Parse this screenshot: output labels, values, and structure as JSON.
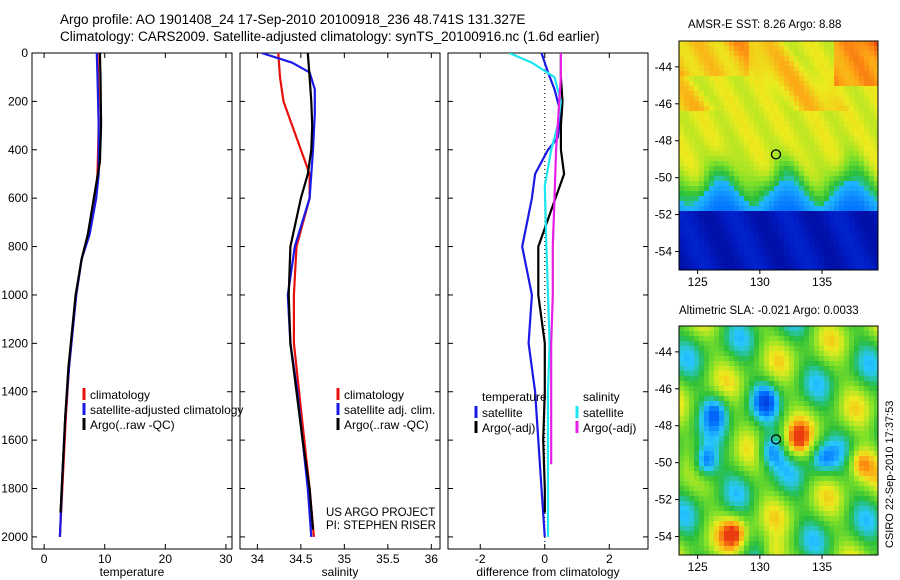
{
  "header": {
    "line1": "Argo profile: AO 1901408_24 17-Sep-2010 20100918_236 48.741S 131.327E",
    "line2": "Climatology: CARS2009. Satellite-adjusted climatology: synTS_20100916.nc (1.6d earlier)"
  },
  "credits": {
    "line1": "US ARGO PROJECT",
    "line2": "PI: STEPHEN RISER",
    "side": "CSIRO 22-Sep-2010 17:37:53"
  },
  "colors": {
    "climatology": "#e8100a",
    "satellite": "#1a1ae6",
    "argo": "#000000",
    "satellite_salinity": "#1ee6f0",
    "argo_adj_salinity": "#e61ee6",
    "text": "#000000"
  },
  "chart_data": [
    {
      "type": "line",
      "orientation": "profile",
      "xlabel": "temperature",
      "ylabel": "",
      "xlim": [
        -2,
        31
      ],
      "ylim": [
        2050,
        0
      ],
      "xticks": [
        0,
        10,
        20,
        30
      ],
      "yticks": [
        0,
        200,
        400,
        600,
        800,
        1000,
        1200,
        1400,
        1600,
        1800,
        2000
      ],
      "legend": {
        "placement": "bottom-right",
        "entries": [
          "climatology",
          "satellite-adjusted climatology",
          "Argo(..raw -QC)"
        ]
      },
      "series": [
        {
          "name": "climatology",
          "color": "#e8100a",
          "x": [
            8.8,
            8.9,
            9.0,
            8.8,
            8.5,
            7.4,
            6.2,
            5.3,
            4.7,
            4.1,
            3.6,
            3.1,
            2.6
          ],
          "y": [
            0,
            100,
            300,
            500,
            600,
            750,
            850,
            1000,
            1150,
            1300,
            1500,
            1750,
            2000
          ]
        },
        {
          "name": "satellite-adjusted climatology",
          "color": "#1a1ae6",
          "x": [
            8.7,
            8.8,
            9.0,
            9.0,
            8.6,
            7.5,
            6.2,
            5.3,
            4.7,
            4.1,
            3.5,
            3.0,
            2.6
          ],
          "y": [
            0,
            100,
            300,
            500,
            600,
            750,
            850,
            1000,
            1150,
            1300,
            1500,
            1750,
            2000
          ]
        },
        {
          "name": "Argo(..raw -QC)",
          "color": "#000000",
          "x": [
            9.2,
            9.3,
            9.4,
            9.2,
            8.2,
            7.2,
            6.2,
            5.2,
            4.6,
            4.0,
            3.5,
            3.0,
            2.7
          ],
          "y": [
            0,
            100,
            300,
            450,
            600,
            750,
            850,
            1000,
            1150,
            1300,
            1500,
            1750,
            1900
          ]
        }
      ]
    },
    {
      "type": "line",
      "orientation": "profile",
      "xlabel": "salinity",
      "ylabel": "",
      "xlim": [
        33.8,
        36.1
      ],
      "ylim": [
        2050,
        0
      ],
      "xticks": [
        34,
        34.5,
        35,
        35.5,
        36
      ],
      "legend": {
        "placement": "bottom-right",
        "entries": [
          "climatology",
          "satellite adj. clim.",
          "Argo(..raw -QC)"
        ]
      },
      "series": [
        {
          "name": "climatology",
          "color": "#e8100a",
          "x": [
            34.24,
            34.26,
            34.3,
            34.4,
            34.5,
            34.6,
            34.6,
            34.45,
            34.42,
            34.42,
            34.48,
            34.54,
            34.6,
            34.65
          ],
          "y": [
            0,
            100,
            200,
            300,
            400,
            500,
            600,
            800,
            1000,
            1200,
            1400,
            1600,
            1800,
            2000
          ]
        },
        {
          "name": "satellite adj. clim.",
          "color": "#1a1ae6",
          "x": [
            34.05,
            34.4,
            34.6,
            34.66,
            34.66,
            34.64,
            34.6,
            34.43,
            34.35,
            34.38,
            34.46,
            34.52,
            34.58,
            34.62
          ],
          "y": [
            0,
            40,
            80,
            150,
            250,
            400,
            600,
            800,
            1000,
            1200,
            1400,
            1600,
            1800,
            2000
          ]
        },
        {
          "name": "Argo(..raw -QC)",
          "color": "#000000",
          "x": [
            34.58,
            34.6,
            34.62,
            34.63,
            34.62,
            34.58,
            34.5,
            34.38,
            34.36,
            34.38,
            34.45,
            34.52,
            34.6,
            34.64
          ],
          "y": [
            0,
            100,
            200,
            300,
            400,
            500,
            600,
            800,
            1000,
            1200,
            1400,
            1600,
            1800,
            1970
          ]
        }
      ]
    },
    {
      "type": "line",
      "orientation": "profile",
      "xlabel": "difference from climatology",
      "ylabel": "",
      "xlim": [
        -3,
        3.2
      ],
      "ylim": [
        2050,
        0
      ],
      "xticks": [
        -2,
        0,
        2
      ],
      "legend": {
        "placement": "bottom",
        "groups": [
          {
            "heading": "temperature",
            "entries": [
              "satellite",
              "Argo(-adj)"
            ]
          },
          {
            "heading": "salinity",
            "entries": [
              "satellite",
              "Argo(-adj)"
            ]
          }
        ]
      },
      "series": [
        {
          "name": "satellite",
          "group": "temperature",
          "color": "#1a1ae6",
          "x": [
            -0.1,
            0.1,
            0.3,
            0.5,
            0.4,
            0.1,
            -0.3,
            -0.4,
            -0.7,
            -0.4,
            -0.5,
            -0.3,
            -0.2,
            -0.1,
            0.0
          ],
          "y": [
            0,
            80,
            150,
            250,
            350,
            400,
            500,
            600,
            800,
            1000,
            1200,
            1400,
            1600,
            1800,
            2000
          ]
        },
        {
          "name": "Argo(-adj)",
          "group": "temperature",
          "color": "#000000",
          "x": [
            0.5,
            0.5,
            0.55,
            0.5,
            0.5,
            0.6,
            0.2,
            -0.2,
            -0.2,
            0.0,
            0.0,
            -0.05,
            0.0,
            0.0
          ],
          "y": [
            0,
            100,
            200,
            300,
            400,
            500,
            650,
            800,
            1000,
            1200,
            1400,
            1600,
            1800,
            1900
          ]
        },
        {
          "name": "satellite",
          "group": "salinity",
          "color": "#1ee6f0",
          "x": [
            -1.1,
            -0.4,
            0.3,
            0.5,
            0.4,
            0.2,
            0.0,
            0.05,
            0.1,
            0.15,
            0.1,
            0.1,
            0.1,
            0.1
          ],
          "y": [
            0,
            40,
            100,
            200,
            300,
            400,
            550,
            800,
            1000,
            1200,
            1400,
            1600,
            1800,
            2000
          ]
        },
        {
          "name": "Argo(-adj)",
          "group": "salinity",
          "color": "#e61ee6",
          "x": [
            0.5,
            0.5,
            0.45,
            0.4,
            0.35,
            0.3,
            0.25,
            0.25,
            0.2,
            0.2,
            0.2,
            0.2
          ],
          "y": [
            0,
            100,
            200,
            300,
            400,
            600,
            800,
            1000,
            1200,
            1400,
            1600,
            1700
          ]
        }
      ]
    },
    {
      "type": "heatmap",
      "title": "AMSR-E SST: 8.26 Argo: 8.88",
      "xlim": [
        123.5,
        139.5
      ],
      "ylim": [
        -55,
        -42.6
      ],
      "xticks": [
        125,
        130,
        135
      ],
      "yticks": [
        -44,
        -46,
        -48,
        -50,
        -52,
        -54
      ],
      "marker": {
        "lon": 131.3,
        "lat": -48.74
      }
    },
    {
      "type": "heatmap",
      "title": "Altimetric SLA: -0.021 Argo: 0.0033",
      "xlim": [
        123.5,
        139.5
      ],
      "ylim": [
        -55,
        -42.6
      ],
      "xticks": [
        125,
        130,
        135
      ],
      "yticks": [
        -44,
        -46,
        -48,
        -50,
        -52,
        -54
      ],
      "marker": {
        "lon": 131.3,
        "lat": -48.74
      }
    }
  ]
}
